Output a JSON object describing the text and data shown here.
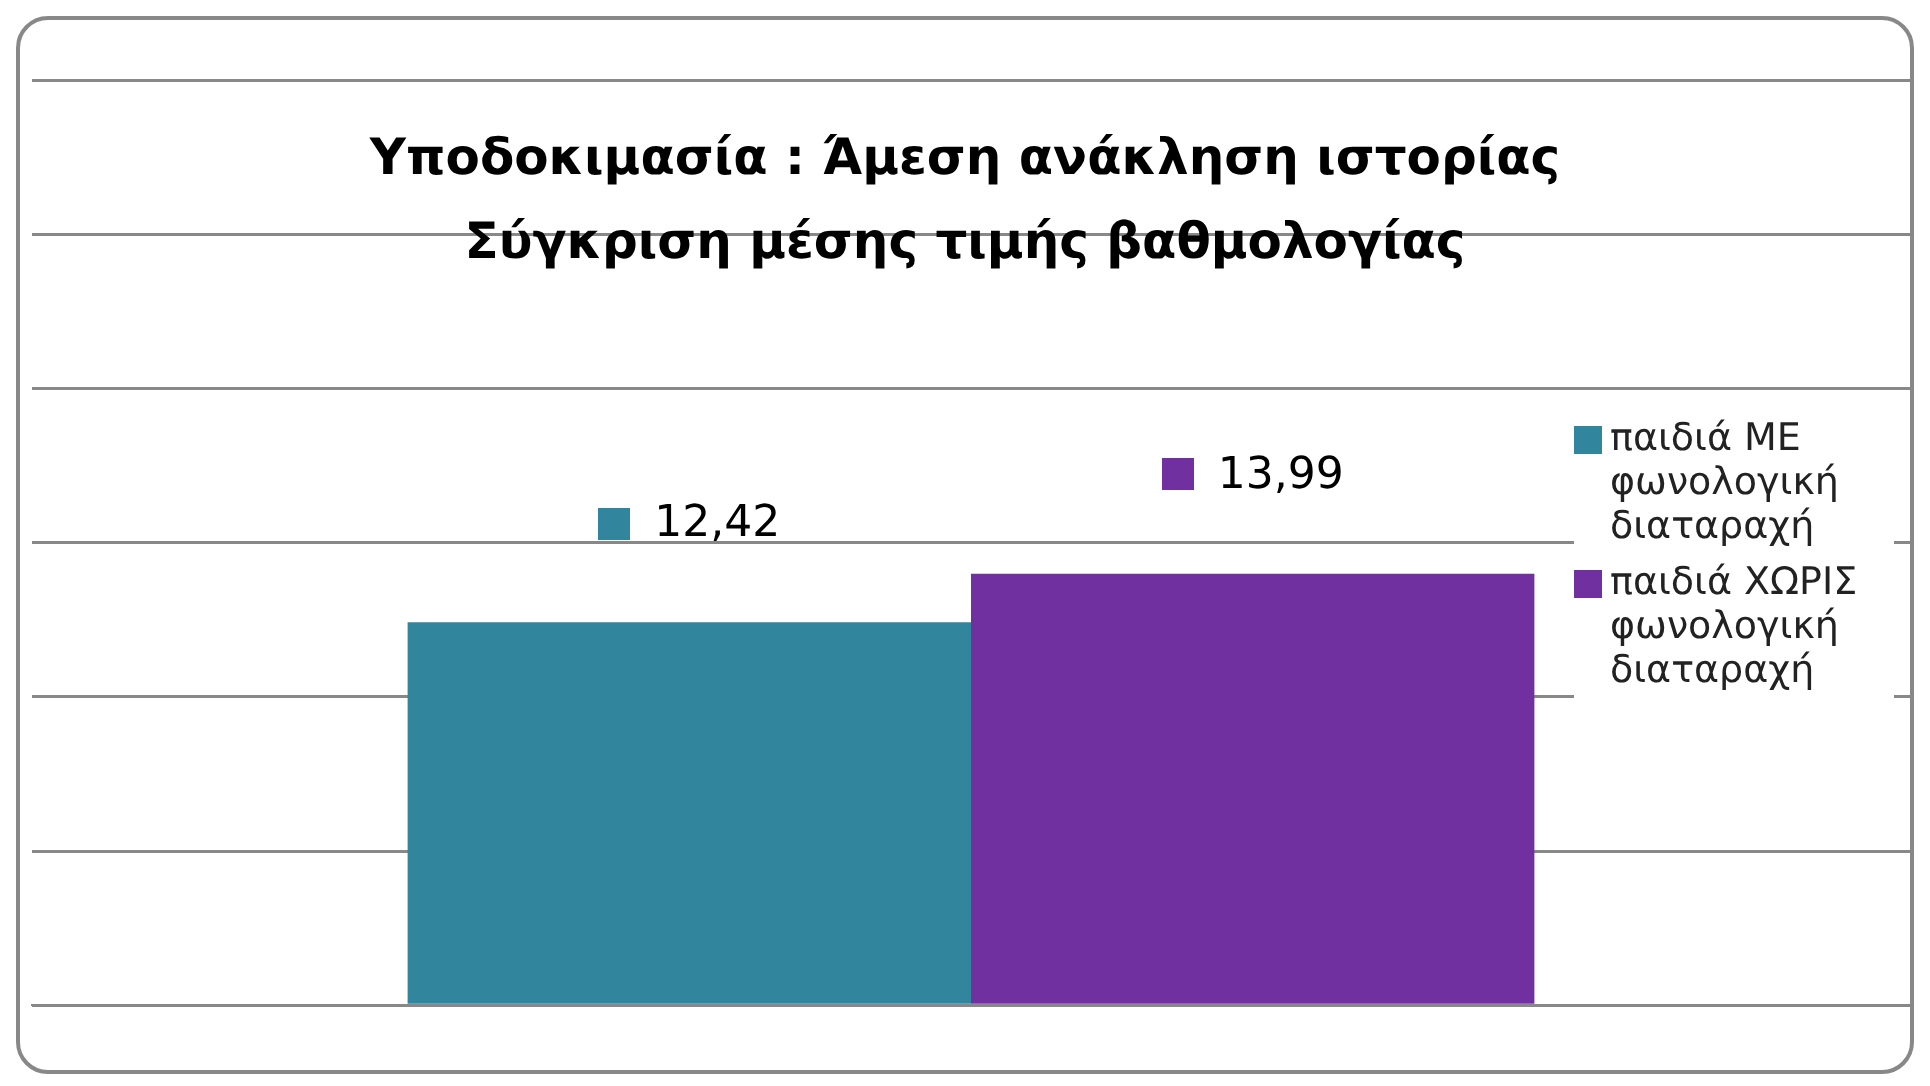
{
  "chart_data": {
    "type": "bar",
    "title": "Υποδοκιμασία : Άμεση ανάκληση ιστορίας\nΣύγκριση μέσης τιμής βαθμολογίας",
    "categories": [
      null
    ],
    "series": [
      {
        "name": "παιδιά ΜΕ φωνολογική διαταραχή",
        "color": "#31859c",
        "values": [
          12.42
        ],
        "value_labels": [
          "12,42"
        ]
      },
      {
        "name": "παιδιά ΧΩΡΙΣ φωνολογική διαταραχή",
        "color": "#7030a0",
        "values": [
          13.99
        ],
        "value_labels": [
          "13,99"
        ]
      }
    ],
    "ylim": [
      0,
      30
    ],
    "yticks": [
      {
        "value": 0,
        "label": null
      },
      {
        "value": 5,
        "label": null
      },
      {
        "value": 10,
        "label": null
      },
      {
        "value": 15,
        "label": null
      },
      {
        "value": 20,
        "label": null
      },
      {
        "value": 25,
        "label": null
      },
      {
        "value": 30,
        "label": null
      }
    ],
    "grid": "y",
    "legend": "right"
  }
}
